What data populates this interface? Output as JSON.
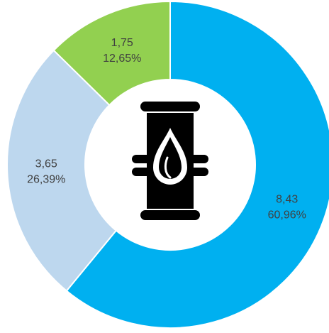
{
  "chart_data": {
    "type": "donut",
    "values": [
      8.43,
      3.65,
      1.75
    ],
    "value_labels": [
      "8,43",
      "3,65",
      "1,75"
    ],
    "percents": [
      60.96,
      26.39,
      12.65
    ],
    "percent_labels": [
      "60,96%",
      "26,39%",
      "12,65%"
    ],
    "colors": [
      "#00b0f0",
      "#bdd7ee",
      "#92d050"
    ]
  }
}
